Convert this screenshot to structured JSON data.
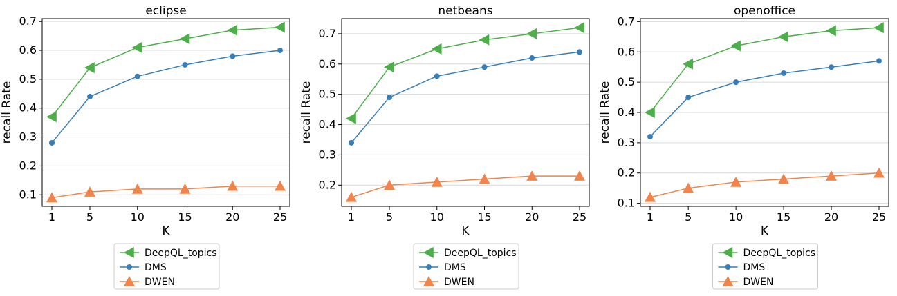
{
  "chart_data": [
    {
      "type": "line",
      "title": "eclipse",
      "xlabel": "K",
      "ylabel": "recall Rate",
      "x": [
        1,
        5,
        10,
        15,
        20,
        25
      ],
      "xticks": [
        "1",
        "5",
        "10",
        "15",
        "20",
        "25"
      ],
      "ylim": [
        0.06,
        0.71
      ],
      "yticks": [
        0.1,
        0.2,
        0.3,
        0.4,
        0.5,
        0.6,
        0.7
      ],
      "ytick_labels": [
        "0.1",
        "0.2",
        "0.3",
        "0.4",
        "0.5",
        "0.6",
        "0.7"
      ],
      "grid": "horizontal",
      "legend_position": "below",
      "series": [
        {
          "name": "DeepQL_topics",
          "color": "#4daf4a",
          "marker": "triangle-left",
          "values": [
            0.37,
            0.54,
            0.61,
            0.64,
            0.67,
            0.68
          ]
        },
        {
          "name": "DMS",
          "color": "#377eb8",
          "marker": "circle",
          "values": [
            0.28,
            0.44,
            0.51,
            0.55,
            0.58,
            0.6
          ]
        },
        {
          "name": "DWEN",
          "color": "#f0844a",
          "marker": "triangle-up",
          "values": [
            0.09,
            0.11,
            0.12,
            0.12,
            0.13,
            0.13
          ]
        }
      ]
    },
    {
      "type": "line",
      "title": "netbeans",
      "xlabel": "K",
      "ylabel": "recall Rate",
      "x": [
        1,
        5,
        10,
        15,
        20,
        25
      ],
      "xticks": [
        "1",
        "5",
        "10",
        "15",
        "20",
        "25"
      ],
      "ylim": [
        0.13,
        0.75
      ],
      "yticks": [
        0.2,
        0.3,
        0.4,
        0.5,
        0.6,
        0.7
      ],
      "ytick_labels": [
        "0.2",
        "0.3",
        "0.4",
        "0.5",
        "0.6",
        "0.7"
      ],
      "grid": "horizontal",
      "legend_position": "below",
      "series": [
        {
          "name": "DeepQL_topics",
          "color": "#4daf4a",
          "marker": "triangle-left",
          "values": [
            0.42,
            0.59,
            0.65,
            0.68,
            0.7,
            0.72
          ]
        },
        {
          "name": "DMS",
          "color": "#377eb8",
          "marker": "circle",
          "values": [
            0.34,
            0.49,
            0.56,
            0.59,
            0.62,
            0.64
          ]
        },
        {
          "name": "DWEN",
          "color": "#f0844a",
          "marker": "triangle-up",
          "values": [
            0.16,
            0.2,
            0.21,
            0.22,
            0.23,
            0.23
          ]
        }
      ]
    },
    {
      "type": "line",
      "title": "openoffice",
      "xlabel": "K",
      "ylabel": "recall Rate",
      "x": [
        1,
        5,
        10,
        15,
        20,
        25
      ],
      "xticks": [
        "1",
        "5",
        "10",
        "15",
        "20",
        "25"
      ],
      "ylim": [
        0.09,
        0.71
      ],
      "yticks": [
        0.1,
        0.2,
        0.3,
        0.4,
        0.5,
        0.6,
        0.7
      ],
      "ytick_labels": [
        "0.1",
        "0.2",
        "0.3",
        "0.4",
        "0.5",
        "0.6",
        "0.7"
      ],
      "grid": "horizontal",
      "legend_position": "below",
      "series": [
        {
          "name": "DeepQL_topics",
          "color": "#4daf4a",
          "marker": "triangle-left",
          "values": [
            0.4,
            0.56,
            0.62,
            0.65,
            0.67,
            0.68
          ]
        },
        {
          "name": "DMS",
          "color": "#377eb8",
          "marker": "circle",
          "values": [
            0.32,
            0.45,
            0.5,
            0.53,
            0.55,
            0.57
          ]
        },
        {
          "name": "DWEN",
          "color": "#f0844a",
          "marker": "triangle-up",
          "values": [
            0.12,
            0.15,
            0.17,
            0.18,
            0.19,
            0.2
          ]
        }
      ]
    }
  ]
}
